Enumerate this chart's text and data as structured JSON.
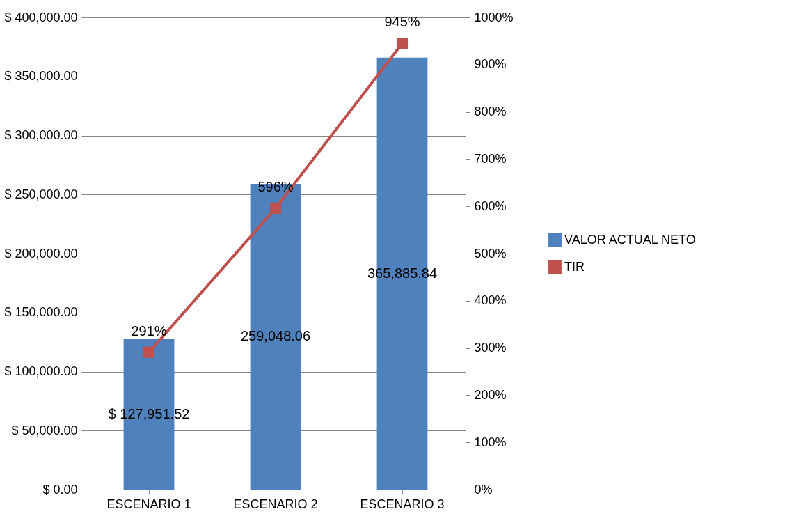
{
  "chart_data": {
    "type": "bar",
    "categories": [
      "ESCENARIO 1",
      "ESCENARIO 2",
      "ESCENARIO 3"
    ],
    "series": [
      {
        "name": "VALOR ACTUAL NETO",
        "color": "#4f81bd",
        "values": [
          127951.52,
          259048.06,
          365885.84
        ],
        "value_labels": [
          "$ 127,951.52",
          "259,048.06",
          "365,885.84"
        ]
      },
      {
        "name": "TIR",
        "type": "line",
        "axis": "y2",
        "color": "#c0504d",
        "values": [
          291,
          596,
          945
        ],
        "value_labels": [
          "291%",
          "596%",
          "945%"
        ]
      }
    ],
    "ylim": [
      0,
      400000
    ],
    "yticks": [
      {
        "value": 0,
        "label": "$ 0.00"
      },
      {
        "value": 50000,
        "label": "$ 50,000.00"
      },
      {
        "value": 100000,
        "label": "$ 100,000.00"
      },
      {
        "value": 150000,
        "label": "$ 150,000.00"
      },
      {
        "value": 200000,
        "label": "$ 200,000.00"
      },
      {
        "value": 250000,
        "label": "$ 250,000.00"
      },
      {
        "value": 300000,
        "label": "$ 300,000.00"
      },
      {
        "value": 350000,
        "label": "$ 350,000.00"
      },
      {
        "value": 400000,
        "label": "$ 400,000.00"
      }
    ],
    "y2lim": [
      0,
      1000
    ],
    "y2ticks": [
      {
        "value": 0,
        "label": "0%"
      },
      {
        "value": 100,
        "label": "100%"
      },
      {
        "value": 200,
        "label": "200%"
      },
      {
        "value": 300,
        "label": "300%"
      },
      {
        "value": 400,
        "label": "400%"
      },
      {
        "value": 500,
        "label": "500%"
      },
      {
        "value": 600,
        "label": "600%"
      },
      {
        "value": 700,
        "label": "700%"
      },
      {
        "value": 800,
        "label": "800%"
      },
      {
        "value": 900,
        "label": "900%"
      },
      {
        "value": 1000,
        "label": "1000%"
      }
    ],
    "grid": "y",
    "legend": "right",
    "marker": "square",
    "line_style": "solid"
  }
}
